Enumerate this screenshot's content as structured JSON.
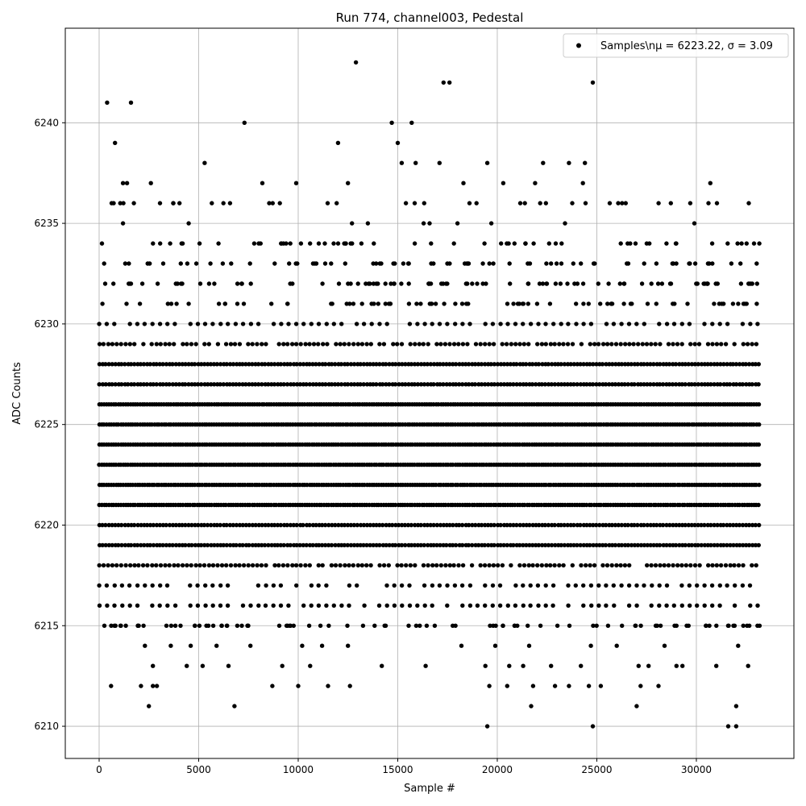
{
  "chart_data": {
    "type": "scatter",
    "title": "Run 774, channel003, Pedestal",
    "xlabel": "Sample #",
    "ylabel": "ADC Counts",
    "xlim": [
      -1700,
      34900
    ],
    "ylim": [
      6208.4,
      6244.7
    ],
    "xticks": [
      0,
      5000,
      10000,
      15000,
      20000,
      25000,
      30000
    ],
    "yticks": [
      6210,
      6215,
      6220,
      6225,
      6230,
      6235,
      6240
    ],
    "grid": true,
    "legend_position": "top-right",
    "marker_color": "#000000",
    "series": [
      {
        "name": "Samples\\n$\\mu$ = 6223.22, $\\sigma$ = 3.09",
        "legend_label": "Samples\\nμ = 6223.22, σ = 3.09",
        "n_samples": 33200,
        "mean": 6223.22,
        "sigma": 3.09,
        "dense_levels": [
          6216,
          6217,
          6218,
          6219,
          6220,
          6221,
          6222,
          6223,
          6224,
          6225,
          6226,
          6227,
          6228,
          6229,
          6230
        ],
        "outliers": [
          {
            "x": 400,
            "y": 6241
          },
          {
            "x": 1600,
            "y": 6241
          },
          {
            "x": 800,
            "y": 6239
          },
          {
            "x": 7300,
            "y": 6240
          },
          {
            "x": 12900,
            "y": 6243
          },
          {
            "x": 14700,
            "y": 6240
          },
          {
            "x": 15700,
            "y": 6240
          },
          {
            "x": 15000,
            "y": 6239
          },
          {
            "x": 12000,
            "y": 6239
          },
          {
            "x": 17300,
            "y": 6242
          },
          {
            "x": 17600,
            "y": 6242
          },
          {
            "x": 24800,
            "y": 6242
          },
          {
            "x": 5300,
            "y": 6238
          },
          {
            "x": 15900,
            "y": 6238
          },
          {
            "x": 17100,
            "y": 6238
          },
          {
            "x": 19500,
            "y": 6238
          },
          {
            "x": 22300,
            "y": 6238
          },
          {
            "x": 23600,
            "y": 6238
          },
          {
            "x": 24400,
            "y": 6238
          },
          {
            "x": 15200,
            "y": 6238
          },
          {
            "x": 1200,
            "y": 6237
          },
          {
            "x": 1400,
            "y": 6237
          },
          {
            "x": 2600,
            "y": 6237
          },
          {
            "x": 8200,
            "y": 6237
          },
          {
            "x": 9900,
            "y": 6237
          },
          {
            "x": 12500,
            "y": 6237
          },
          {
            "x": 18300,
            "y": 6237
          },
          {
            "x": 20300,
            "y": 6237
          },
          {
            "x": 21900,
            "y": 6237
          },
          {
            "x": 24300,
            "y": 6237
          },
          {
            "x": 30700,
            "y": 6237
          },
          {
            "x": 1200,
            "y": 6235
          },
          {
            "x": 4500,
            "y": 6235
          },
          {
            "x": 12700,
            "y": 6235
          },
          {
            "x": 13500,
            "y": 6235
          },
          {
            "x": 16300,
            "y": 6235
          },
          {
            "x": 16600,
            "y": 6235
          },
          {
            "x": 18000,
            "y": 6235
          },
          {
            "x": 19700,
            "y": 6235
          },
          {
            "x": 23400,
            "y": 6235
          },
          {
            "x": 29900,
            "y": 6235
          },
          {
            "x": 600,
            "y": 6212
          },
          {
            "x": 2100,
            "y": 6212
          },
          {
            "x": 2700,
            "y": 6212
          },
          {
            "x": 2900,
            "y": 6212
          },
          {
            "x": 8700,
            "y": 6212
          },
          {
            "x": 10000,
            "y": 6212
          },
          {
            "x": 11500,
            "y": 6212
          },
          {
            "x": 12600,
            "y": 6212
          },
          {
            "x": 19600,
            "y": 6212
          },
          {
            "x": 20500,
            "y": 6212
          },
          {
            "x": 21800,
            "y": 6212
          },
          {
            "x": 22900,
            "y": 6212
          },
          {
            "x": 23600,
            "y": 6212
          },
          {
            "x": 24600,
            "y": 6212
          },
          {
            "x": 25200,
            "y": 6212
          },
          {
            "x": 27200,
            "y": 6212
          },
          {
            "x": 28100,
            "y": 6212
          },
          {
            "x": 2500,
            "y": 6211
          },
          {
            "x": 6800,
            "y": 6211
          },
          {
            "x": 21700,
            "y": 6211
          },
          {
            "x": 27000,
            "y": 6211
          },
          {
            "x": 32000,
            "y": 6211
          },
          {
            "x": 19500,
            "y": 6210
          },
          {
            "x": 24800,
            "y": 6210
          },
          {
            "x": 31600,
            "y": 6210
          },
          {
            "x": 32000,
            "y": 6210
          },
          {
            "x": 2700,
            "y": 6213
          },
          {
            "x": 4400,
            "y": 6213
          },
          {
            "x": 5200,
            "y": 6213
          },
          {
            "x": 6500,
            "y": 6213
          },
          {
            "x": 9200,
            "y": 6213
          },
          {
            "x": 10600,
            "y": 6213
          },
          {
            "x": 14200,
            "y": 6213
          },
          {
            "x": 16400,
            "y": 6213
          },
          {
            "x": 19400,
            "y": 6213
          },
          {
            "x": 20600,
            "y": 6213
          },
          {
            "x": 21300,
            "y": 6213
          },
          {
            "x": 22700,
            "y": 6213
          },
          {
            "x": 24200,
            "y": 6213
          },
          {
            "x": 27100,
            "y": 6213
          },
          {
            "x": 27600,
            "y": 6213
          },
          {
            "x": 29000,
            "y": 6213
          },
          {
            "x": 29300,
            "y": 6213
          },
          {
            "x": 31000,
            "y": 6213
          },
          {
            "x": 32600,
            "y": 6213
          },
          {
            "x": 2300,
            "y": 6214
          },
          {
            "x": 3600,
            "y": 6214
          },
          {
            "x": 4600,
            "y": 6214
          },
          {
            "x": 5900,
            "y": 6214
          },
          {
            "x": 7600,
            "y": 6214
          },
          {
            "x": 10200,
            "y": 6214
          },
          {
            "x": 11200,
            "y": 6214
          },
          {
            "x": 12500,
            "y": 6214
          },
          {
            "x": 18200,
            "y": 6214
          },
          {
            "x": 19900,
            "y": 6214
          },
          {
            "x": 21600,
            "y": 6214
          },
          {
            "x": 24700,
            "y": 6214
          },
          {
            "x": 26000,
            "y": 6214
          },
          {
            "x": 28400,
            "y": 6214
          },
          {
            "x": 32100,
            "y": 6214
          }
        ]
      }
    ]
  }
}
